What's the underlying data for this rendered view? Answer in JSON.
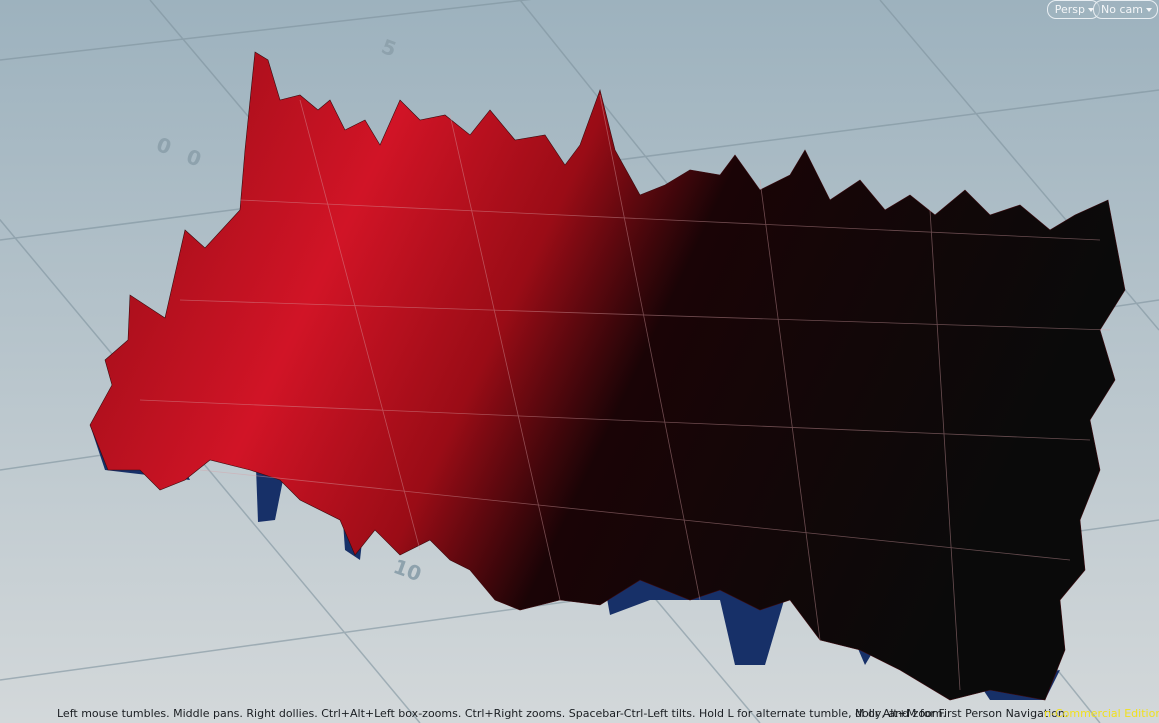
{
  "viewport": {
    "view_menu": "Persp",
    "camera_menu": "No cam",
    "grid_labels": [
      "5",
      "0",
      "0",
      "10"
    ]
  },
  "status_bar": {
    "hint": "Left mouse tumbles. Middle pans. Right dollies. Ctrl+Alt+Left box-zooms. Ctrl+Right zooms. Spacebar-Ctrl-Left tilts. Hold L for alternate tumble, dolly, and zoom.",
    "nav_hint": "M or Alt+M for First Person Navigation.",
    "edition": "n-Commercial Edition"
  }
}
